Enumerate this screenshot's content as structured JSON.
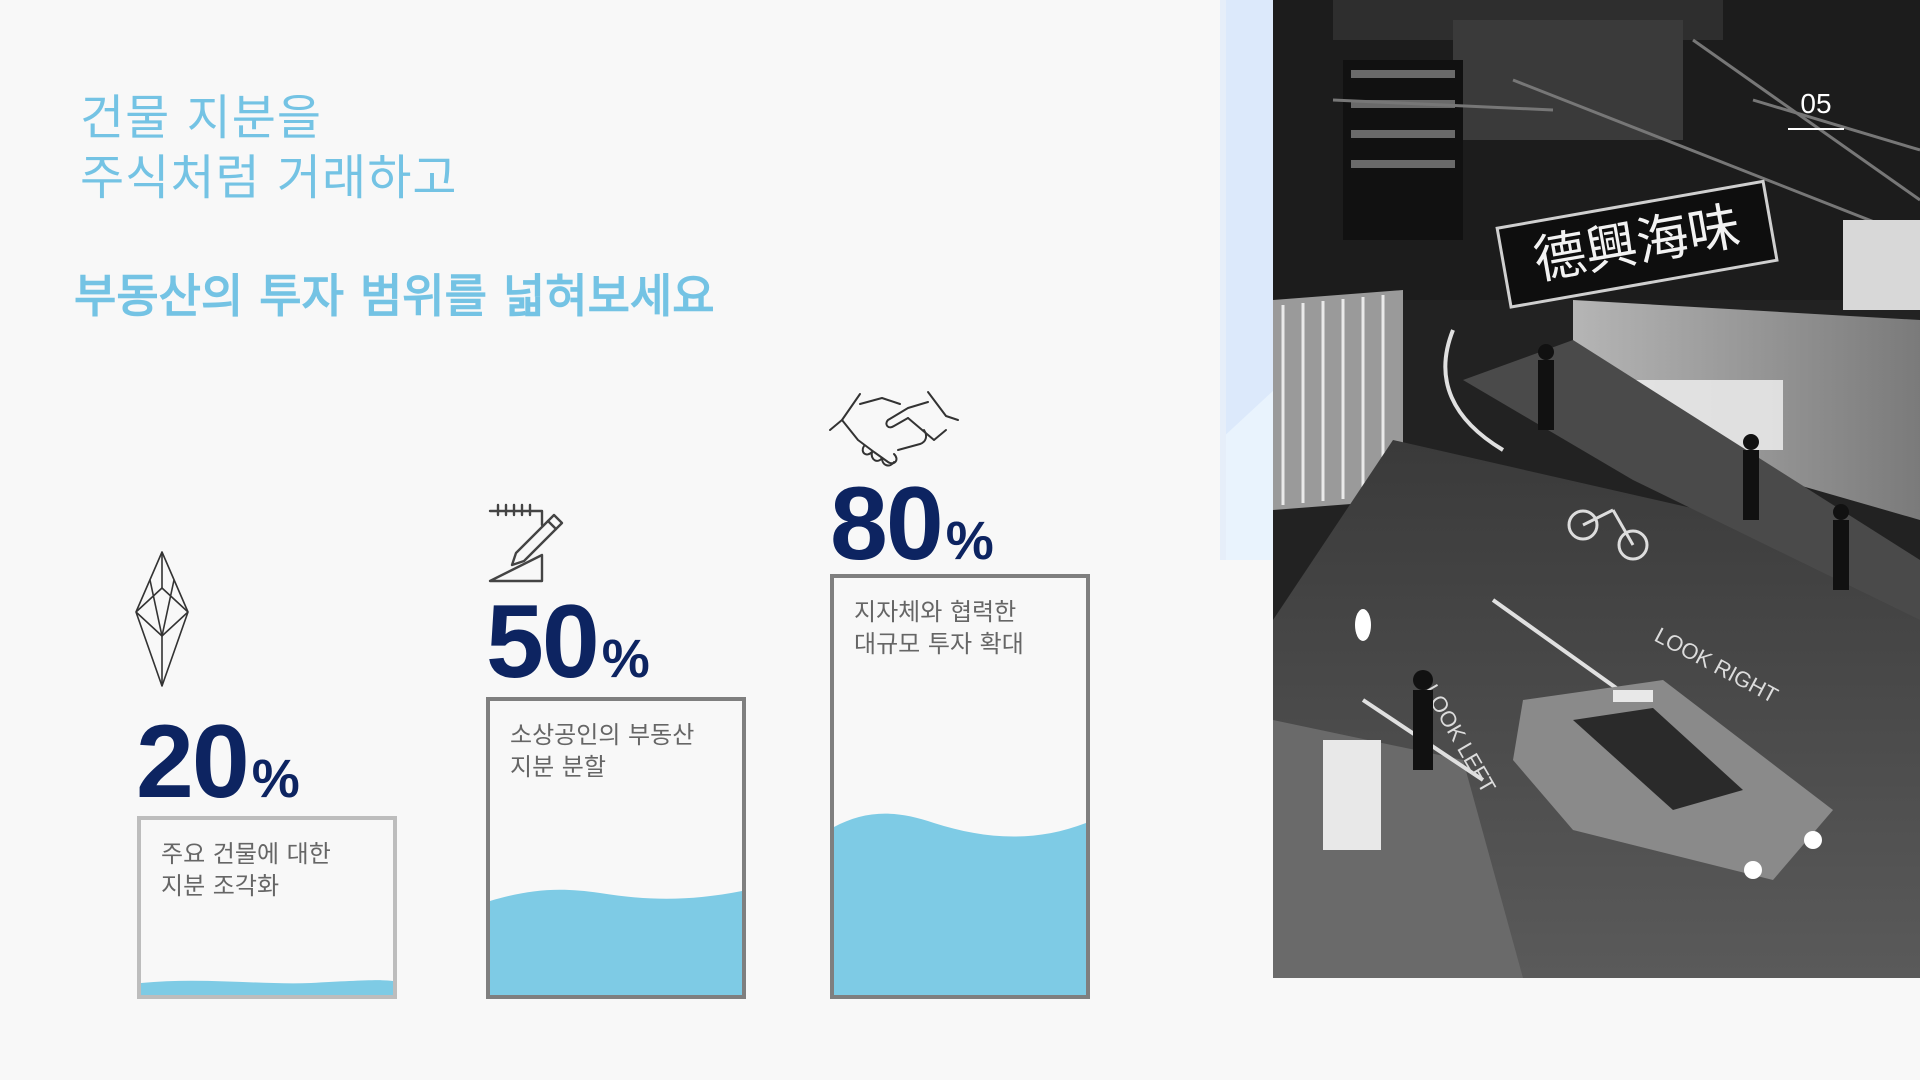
{
  "heading": {
    "line1": "건물 지분을",
    "line2": "주식처럼 거래하고",
    "subtitle": "부동산의 투자 범위를 넓혀보세요"
  },
  "page_number": "05",
  "stats": [
    {
      "value": "20",
      "unit": "%",
      "percent": 20,
      "label": "주요 건물에 대한\n지분 조각화",
      "icon": "diamond-icon"
    },
    {
      "value": "50",
      "unit": "%",
      "percent": 50,
      "label": "소상공인의 부동산\n지분 분할",
      "icon": "notepad-pencil-icon"
    },
    {
      "value": "80",
      "unit": "%",
      "percent": 80,
      "label": "지자체와 협력한\n대규모 투자 확대",
      "icon": "handshake-icon"
    }
  ],
  "photo": {
    "sign_text": "德興海味",
    "road_text_1": "LOOK RIGHT",
    "road_text_2": "LOOK LEFT"
  },
  "colors": {
    "accent_light": "#74c3e4",
    "wave_fill": "#7ecbe5",
    "number_navy": "#0d2461",
    "label_gray": "#666666",
    "background": "#f8f8f8",
    "deco_blue": "#dce9fb"
  }
}
